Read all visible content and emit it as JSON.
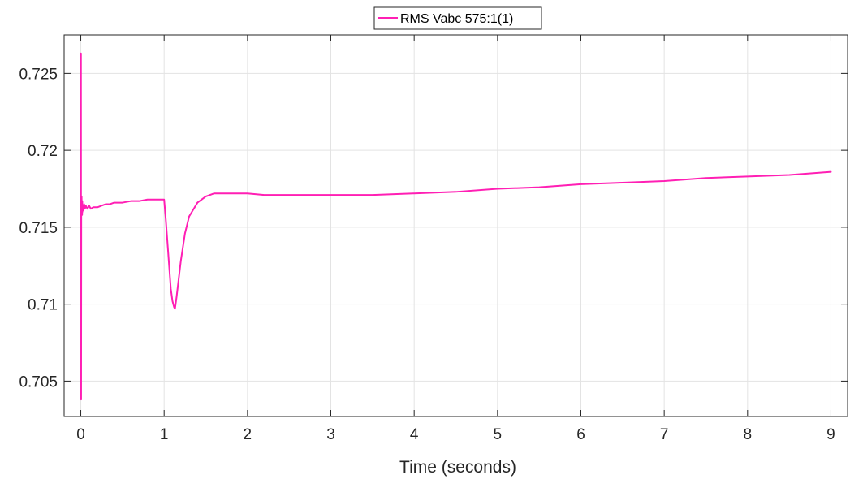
{
  "chart_data": {
    "type": "line",
    "xlabel": "Time (seconds)",
    "ylabel": "",
    "xlim": [
      -0.2,
      9.2
    ],
    "ylim": [
      0.7027,
      0.7275
    ],
    "xticks": [
      0,
      1,
      2,
      3,
      4,
      5,
      6,
      7,
      8,
      9
    ],
    "xtick_labels": [
      "0",
      "1",
      "2",
      "3",
      "4",
      "5",
      "6",
      "7",
      "8",
      "9"
    ],
    "yticks": [
      0.705,
      0.71,
      0.715,
      0.72,
      0.725
    ],
    "ytick_labels": [
      "0.705",
      "0.71",
      "0.715",
      "0.72",
      "0.725"
    ],
    "grid": true,
    "legend_position": "top-center",
    "series": [
      {
        "name": "RMS Vabc 575:1(1)",
        "color": "#ff1fb4",
        "x": [
          0,
          0.002,
          0.004,
          0.006,
          0.008,
          0.01,
          0.012,
          0.014,
          0.016,
          0.018,
          0.02,
          0.025,
          0.03,
          0.04,
          0.05,
          0.06,
          0.08,
          0.1,
          0.12,
          0.15,
          0.18,
          0.2,
          0.25,
          0.3,
          0.35,
          0.4,
          0.5,
          0.6,
          0.7,
          0.8,
          0.9,
          1.0,
          1.02,
          1.04,
          1.06,
          1.08,
          1.1,
          1.12,
          1.13,
          1.15,
          1.2,
          1.25,
          1.3,
          1.4,
          1.5,
          1.6,
          1.7,
          1.8,
          1.9,
          2.0,
          2.2,
          2.5,
          3.0,
          3.5,
          4.0,
          4.5,
          5.0,
          5.5,
          6.0,
          6.5,
          7.0,
          7.5,
          8.0,
          8.5,
          9.0
        ],
        "y": [
          0.7165,
          0.7263,
          0.7038,
          0.7168,
          0.7159,
          0.717,
          0.716,
          0.7166,
          0.7158,
          0.7167,
          0.716,
          0.7164,
          0.7161,
          0.7165,
          0.7162,
          0.7164,
          0.7162,
          0.7164,
          0.7162,
          0.7163,
          0.7163,
          0.7163,
          0.7164,
          0.7165,
          0.7165,
          0.7166,
          0.7166,
          0.7167,
          0.7167,
          0.7168,
          0.7168,
          0.7168,
          0.7155,
          0.714,
          0.7125,
          0.711,
          0.7102,
          0.7098,
          0.7097,
          0.7105,
          0.7128,
          0.7146,
          0.7157,
          0.7166,
          0.717,
          0.7172,
          0.7172,
          0.7172,
          0.7172,
          0.7172,
          0.7171,
          0.7171,
          0.7171,
          0.7171,
          0.7172,
          0.7173,
          0.7175,
          0.7176,
          0.7178,
          0.7179,
          0.718,
          0.7182,
          0.7183,
          0.7184,
          0.7186
        ]
      }
    ]
  }
}
